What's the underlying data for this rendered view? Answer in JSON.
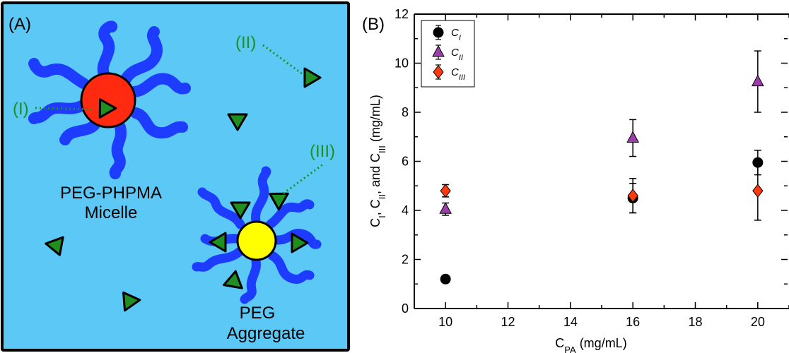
{
  "panel_a": {
    "tag": "(A)",
    "labels": {
      "site_I": "(I)",
      "site_II": "(II)",
      "site_III": "(III)"
    },
    "micelle_caption": [
      "PEG-PHPMA",
      "Micelle"
    ],
    "aggregate_caption": [
      "PEG",
      "Aggregate"
    ],
    "colors": {
      "background": "#5bc8f5",
      "chain": "#1e3cff",
      "micelle_core": "#ff2a10",
      "aggregate_core": "#ffff00",
      "drug": "#1f8f1f",
      "label": "#1f8f1f"
    }
  },
  "panel_b": {
    "tag": "(B)",
    "chart_data": {
      "type": "scatter",
      "xlabel": [
        {
          "t": "C"
        },
        {
          "t": "PA",
          "sub": true
        },
        {
          "t": " (mg/mL)"
        }
      ],
      "ylabel": [
        {
          "t": "C"
        },
        {
          "t": "I",
          "sub": true
        },
        {
          "t": ", C"
        },
        {
          "t": "II",
          "sub": true
        },
        {
          "t": ", and C"
        },
        {
          "t": "III",
          "sub": true
        },
        {
          "t": " (mg/mL)"
        }
      ],
      "xlim": [
        9,
        21
      ],
      "ylim": [
        0,
        12
      ],
      "xticks": [
        10,
        12,
        14,
        16,
        18,
        20
      ],
      "yticks": [
        0,
        2,
        4,
        6,
        8,
        10,
        12
      ],
      "grid": false,
      "legend_position": "top-left",
      "series": [
        {
          "name": [
            {
              "t": "C"
            },
            {
              "t": "I",
              "sub": true
            }
          ],
          "marker": "circle",
          "color": "#000000",
          "x": [
            10,
            16,
            20
          ],
          "y": [
            1.2,
            4.5,
            5.95
          ],
          "err": [
            0,
            0.6,
            0.5
          ]
        },
        {
          "name": [
            {
              "t": "C"
            },
            {
              "t": "II",
              "sub": true
            }
          ],
          "marker": "triangle",
          "color": "#9a3ea8",
          "x": [
            10,
            16,
            20
          ],
          "y": [
            4.05,
            6.95,
            9.25
          ],
          "err": [
            0.25,
            0.75,
            1.25
          ]
        },
        {
          "name": [
            {
              "t": "C"
            },
            {
              "t": "III",
              "sub": true
            }
          ],
          "marker": "diamond",
          "color": "#ff3a10",
          "x": [
            10,
            16,
            20
          ],
          "y": [
            4.8,
            4.6,
            4.8
          ],
          "err": [
            0.25,
            0.7,
            1.2
          ]
        }
      ]
    }
  }
}
